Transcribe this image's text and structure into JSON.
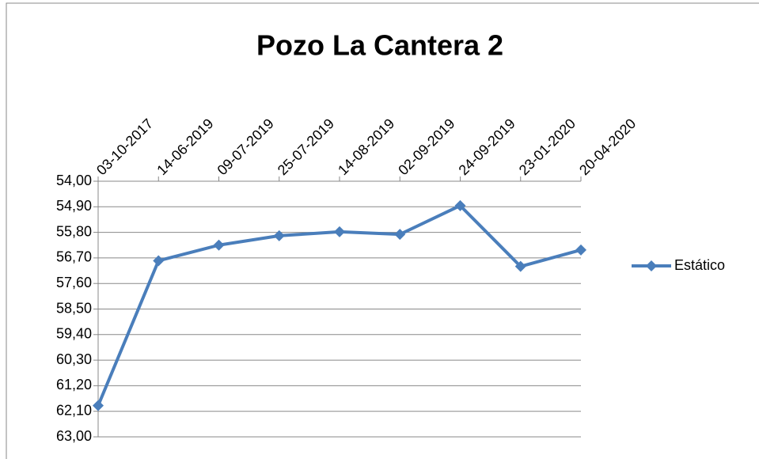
{
  "chart_data": {
    "type": "line",
    "title": "Pozo  La Cantera 2",
    "categories": [
      "03-10-2017",
      "14-06-2019",
      "09-07-2019",
      "25-07-2019",
      "14-08-2019",
      "02-09-2019",
      "24-09-2019",
      "23-01-2020",
      "20-04-2020"
    ],
    "series": [
      {
        "name": "Estático",
        "color": "#4a7ebb",
        "values": [
          61.9,
          56.8,
          56.25,
          55.92,
          55.78,
          55.87,
          54.86,
          57.0,
          56.42
        ]
      }
    ],
    "ylim": [
      54,
      63
    ],
    "yticks": [
      {
        "value": 54,
        "label": "54,00"
      },
      {
        "value": 54.9,
        "label": "54,90"
      },
      {
        "value": 55.8,
        "label": "55,80"
      },
      {
        "value": 56.7,
        "label": "56,70"
      },
      {
        "value": 57.6,
        "label": "57,60"
      },
      {
        "value": 58.5,
        "label": "58,50"
      },
      {
        "value": 59.4,
        "label": "59,40"
      },
      {
        "value": 60.3,
        "label": "60,30"
      },
      {
        "value": 61.2,
        "label": "61,20"
      },
      {
        "value": 62.1,
        "label": "62,10"
      },
      {
        "value": 63,
        "label": "63,00"
      }
    ],
    "y_reversed": true,
    "x_axis_position": "top",
    "grid": true,
    "legend": "right"
  }
}
